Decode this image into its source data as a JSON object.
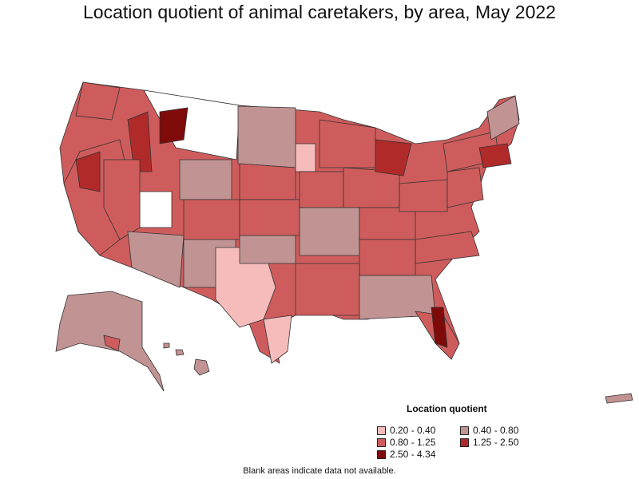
{
  "title": "Location quotient of animal caretakers, by area, May 2022",
  "legend": {
    "title": "Location quotient",
    "items": [
      {
        "label": "0.20 - 0.40",
        "color": "#f6bcbc"
      },
      {
        "label": "0.40 - 0.80",
        "color": "#c29393"
      },
      {
        "label": "0.80 - 1.25",
        "color": "#cf5c5c"
      },
      {
        "label": "1.25 - 2.50",
        "color": "#b02a2a"
      },
      {
        "label": "2.50 - 4.34",
        "color": "#7e0a0a"
      }
    ]
  },
  "footnote": "Blank areas indicate data not available.",
  "colors": {
    "border": "#333333",
    "blank": "#ffffff"
  }
}
